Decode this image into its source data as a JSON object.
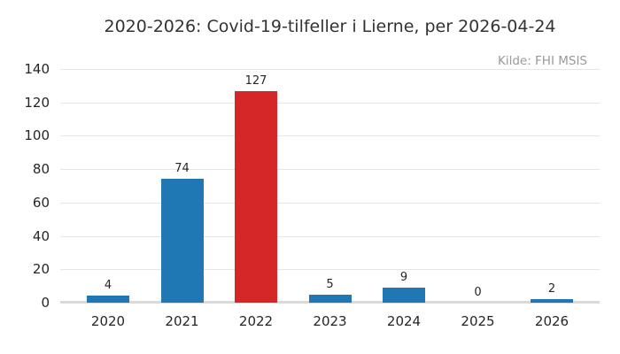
{
  "title": "2020-2026: Covid-19-tilfeller i Lierne, per 2026-04-24",
  "source_label": "Kilde: FHI MSIS",
  "colors": {
    "bar_default": "#1f77b4",
    "bar_highlight": "#d62728",
    "gridline": "#e6e6e6",
    "baseline": "#d9d9d9",
    "title_text": "#333333",
    "tick_text": "#262626",
    "source_text": "#999999",
    "background": "#ffffff"
  },
  "chart_data": {
    "type": "bar",
    "title": "2020-2026: Covid-19-tilfeller i Lierne, per 2026-04-24",
    "categories": [
      "2020",
      "2021",
      "2022",
      "2023",
      "2024",
      "2025",
      "2026"
    ],
    "values": [
      4,
      74,
      127,
      5,
      9,
      0,
      2
    ],
    "bar_colors": [
      "#1f77b4",
      "#1f77b4",
      "#d62728",
      "#1f77b4",
      "#1f77b4",
      "#1f77b4",
      "#1f77b4"
    ],
    "value_labels": [
      "4",
      "74",
      "127",
      "5",
      "9",
      "0",
      "2"
    ],
    "xlabel": "",
    "ylabel": "",
    "ylim": [
      0,
      140
    ],
    "y_ticks": [
      0,
      20,
      40,
      60,
      80,
      100,
      120,
      140
    ],
    "grid": true,
    "legend": "none",
    "annotations": [
      "Kilde: FHI MSIS"
    ]
  }
}
